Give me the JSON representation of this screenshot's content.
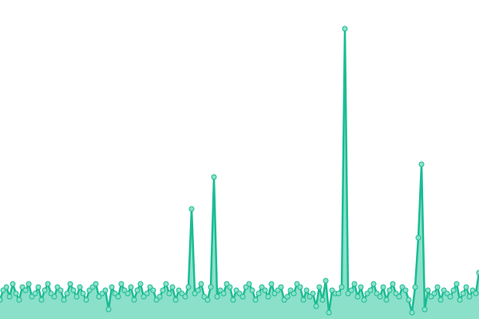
{
  "chart_data": {
    "type": "area",
    "values": [
      6,
      9,
      10,
      7,
      11,
      8,
      6,
      10,
      9,
      11,
      7,
      8,
      10,
      6,
      9,
      11,
      8,
      7,
      10,
      9,
      6,
      8,
      11,
      9,
      7,
      10,
      8,
      6,
      9,
      10,
      11,
      7,
      8,
      9,
      3,
      10,
      8,
      7,
      11,
      9,
      8,
      10,
      6,
      9,
      11,
      7,
      8,
      10,
      9,
      6,
      7,
      9,
      11,
      8,
      10,
      6,
      9,
      8,
      7,
      10,
      34.5,
      8,
      9,
      11,
      7,
      6,
      10,
      44.5,
      7,
      9,
      8,
      11,
      10,
      6,
      9,
      8,
      7,
      10,
      11,
      9,
      6,
      8,
      10,
      9,
      7,
      11,
      8,
      9,
      10,
      6,
      7,
      9,
      8,
      11,
      10,
      6,
      9,
      7,
      8,
      4,
      10,
      6,
      12,
      2,
      9,
      8,
      8,
      10,
      91,
      8,
      9,
      11,
      7,
      10,
      6,
      8,
      9,
      11,
      8,
      7,
      10,
      6,
      9,
      11,
      8,
      7,
      10,
      9,
      6,
      2,
      10,
      25.5,
      48.5,
      3,
      9,
      7,
      8,
      10,
      6,
      9,
      8,
      7,
      9,
      11,
      6,
      8,
      10,
      7,
      9,
      8,
      14.5
    ],
    "ylim": [
      0,
      100
    ],
    "color": "#1bbc93",
    "fill": "#8be0ca"
  }
}
